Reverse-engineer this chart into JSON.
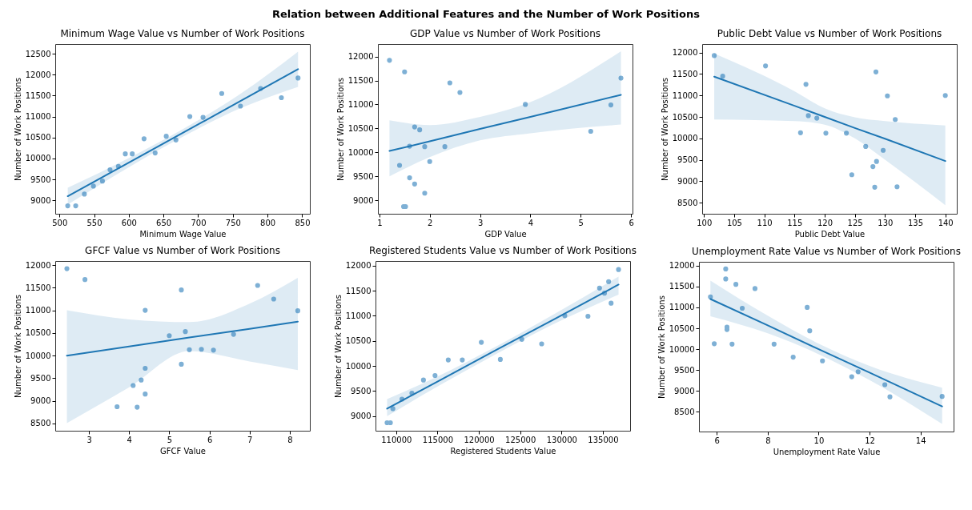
{
  "chart_data": [
    {
      "type": "other",
      "title": "Relation between Additional Features and the Number of Work Positions"
    },
    {
      "type": "scatter",
      "title": "Minimum Wage Value vs Number of Work Positions",
      "xlabel": "Minimum Wage Value",
      "ylabel": "Number of Work Positions",
      "xlim": [
        494,
        861
      ],
      "ylim": [
        8680,
        12730
      ],
      "xticks": [
        500,
        550,
        600,
        650,
        700,
        750,
        800,
        850
      ],
      "yticks": [
        9000,
        9500,
        10000,
        10500,
        11000,
        11500,
        12000,
        12500
      ],
      "series": [
        {
          "type": "scatter",
          "marker": "circle",
          "color": "#7eb0d5",
          "x": [
            512,
            523.5,
            536,
            549,
            562,
            573,
            585,
            595,
            605,
            622,
            638,
            654,
            668,
            688,
            707,
            734,
            761,
            790,
            820,
            844
          ],
          "values": [
            8870,
            8870,
            9150,
            9340,
            9460,
            9730,
            9810,
            10110,
            10110,
            10470,
            10130,
            10530,
            10440,
            11000,
            10980,
            11550,
            11250,
            11670,
            11450,
            11920
          ]
        },
        {
          "type": "line",
          "color": "#1f77b4",
          "x": [
            512,
            600,
            680,
            760,
            844
          ],
          "values": [
            9100,
            9900,
            10630,
            11360,
            12130
          ],
          "lower": [
            8900,
            9790,
            10540,
            11190,
            11710
          ],
          "upper": [
            9300,
            10010,
            10720,
            11530,
            12550
          ]
        }
      ]
    },
    {
      "type": "scatter",
      "title": "GDP Value vs Number of Work Positions",
      "xlabel": "GDP Value",
      "ylabel": "Number of Work Positions",
      "xlim": [
        0.97,
        6.03
      ],
      "ylim": [
        8720,
        12260
      ],
      "xticks": [
        1,
        2,
        3,
        4,
        5,
        6
      ],
      "yticks": [
        9000,
        9500,
        10000,
        10500,
        11000,
        11500,
        12000
      ],
      "series": [
        {
          "type": "scatter",
          "marker": "circle",
          "color": "#7eb0d5",
          "x": [
            1.2,
            1.5,
            2.4,
            2.6,
            3.9,
            5.8,
            5.6,
            5.2,
            1.7,
            1.8,
            1.6,
            1.9,
            2.3,
            2.0,
            1.4,
            1.6,
            1.7,
            1.9,
            1.48,
            1.52
          ],
          "values": [
            11920,
            11680,
            11450,
            11250,
            11000,
            11550,
            10990,
            10440,
            10530,
            10470,
            10130,
            10120,
            10120,
            9810,
            9730,
            9470,
            9340,
            9150,
            8870,
            8870
          ]
        },
        {
          "type": "line",
          "color": "#1f77b4",
          "x": [
            1.2,
            2,
            3,
            4,
            5.8
          ],
          "values": [
            10030,
            10230,
            10490,
            10740,
            11200
          ],
          "lower": [
            9500,
            9900,
            10250,
            10400,
            10580
          ],
          "upper": [
            10670,
            10570,
            10740,
            11050,
            12110
          ]
        }
      ]
    },
    {
      "type": "scatter",
      "title": "Public Debt Value vs Number of Work Positions",
      "xlabel": "Public Debt Value",
      "ylabel": "Number of Work Positions",
      "xlim": [
        99.7,
        141.9
      ],
      "ylim": [
        8240,
        12200
      ],
      "xticks": [
        100,
        105,
        110,
        115,
        120,
        125,
        130,
        135,
        140
      ],
      "yticks": [
        8500,
        9000,
        9500,
        10000,
        10500,
        11000,
        11500,
        12000
      ],
      "series": [
        {
          "type": "scatter",
          "marker": "circle",
          "color": "#7eb0d5",
          "x": [
            101.7,
            103.1,
            110.2,
            116.9,
            128.5,
            130.4,
            140,
            117.3,
            118.7,
            131.7,
            116,
            120.2,
            123.6,
            126.8,
            129.7,
            128.6,
            128,
            124.5,
            128.3,
            132
          ],
          "values": [
            11930,
            11450,
            11690,
            11260,
            11550,
            10990,
            11000,
            10530,
            10470,
            10440,
            10130,
            10120,
            10120,
            9810,
            9720,
            9460,
            9340,
            9150,
            8860,
            8870
          ]
        },
        {
          "type": "line",
          "color": "#1f77b4",
          "x": [
            101.7,
            115,
            120,
            125,
            130,
            140
          ],
          "values": [
            11440,
            10760,
            10500,
            10240,
            9990,
            9470
          ],
          "lower": [
            10440,
            10400,
            10320,
            10000,
            9500,
            8440
          ],
          "upper": [
            11980,
            11100,
            10700,
            10490,
            10400,
            10300
          ]
        }
      ]
    },
    {
      "type": "scatter",
      "title": "GFCF Value vs Number of Work Positions",
      "xlabel": "GFCF Value",
      "ylabel": "Number of Work Positions",
      "xlim": [
        2.16,
        8.5
      ],
      "ylim": [
        8340,
        12090
      ],
      "xticks": [
        3,
        4,
        5,
        6,
        7,
        8
      ],
      "yticks": [
        8500,
        9000,
        9500,
        10000,
        10500,
        11000,
        11500,
        12000
      ],
      "series": [
        {
          "type": "scatter",
          "marker": "circle",
          "color": "#7eb0d5",
          "x": [
            2.45,
            2.9,
            5.3,
            7.2,
            7.6,
            8.2,
            4.4,
            5.0,
            5.4,
            6.6,
            5.5,
            5.8,
            6.1,
            5.3,
            4.4,
            4.3,
            4.1,
            4.4,
            3.7,
            4.2
          ],
          "values": [
            11920,
            11680,
            11450,
            11550,
            11250,
            10990,
            11000,
            10440,
            10530,
            10470,
            10130,
            10140,
            10120,
            9810,
            9720,
            9460,
            9340,
            9150,
            8870,
            8860
          ]
        },
        {
          "type": "line",
          "color": "#1f77b4",
          "x": [
            2.45,
            4,
            5.5,
            7,
            8.2
          ],
          "values": [
            10000,
            10200,
            10400,
            10590,
            10750
          ],
          "lower": [
            8510,
            9300,
            10100,
            9870,
            9680
          ],
          "upper": [
            11000,
            10800,
            10740,
            11150,
            11720
          ]
        }
      ]
    },
    {
      "type": "scatter",
      "title": "Registered Students Value vs Number of Work Positions",
      "xlabel": "Registered Students Value",
      "ylabel": "Number of Work Positions",
      "xlim": [
        107500,
        138300
      ],
      "ylim": [
        8710,
        12090
      ],
      "xticks": [
        110000,
        115000,
        120000,
        125000,
        130000,
        135000
      ],
      "yticks": [
        9000,
        9500,
        10000,
        10500,
        11000,
        11500,
        12000
      ],
      "series": [
        {
          "type": "scatter",
          "marker": "circle",
          "color": "#7eb0d5",
          "x": [
            108900,
            109300,
            109600,
            110700,
            111900,
            113300,
            114700,
            116300,
            118000,
            120300,
            122600,
            125200,
            127600,
            130400,
            133200,
            134600,
            135200,
            135700,
            136000,
            136900
          ],
          "values": [
            8870,
            8870,
            9150,
            9340,
            9460,
            9720,
            9810,
            10120,
            10120,
            10470,
            10130,
            10530,
            10440,
            11000,
            10990,
            11550,
            11450,
            11680,
            11250,
            11920
          ]
        },
        {
          "type": "line",
          "color": "#1f77b4",
          "x": [
            108900,
            115000,
            122000,
            129000,
            136900
          ],
          "values": [
            9150,
            9690,
            10310,
            10920,
            11620
          ],
          "lower": [
            9000,
            9590,
            10230,
            10830,
            11420
          ],
          "upper": [
            9340,
            9790,
            10380,
            11020,
            11780
          ]
        }
      ]
    },
    {
      "type": "scatter",
      "title": "Unemployment Rate Value vs Number of Work Positions",
      "xlabel": "Unemployment Rate Value",
      "ylabel": "Number of Work Positions",
      "xlim": [
        5.3,
        15.3
      ],
      "ylim": [
        8030,
        12090
      ],
      "xticks": [
        6,
        8,
        10,
        12,
        14
      ],
      "yticks": [
        8500,
        9000,
        9500,
        10000,
        10500,
        11000,
        11500,
        12000
      ],
      "series": [
        {
          "type": "scatter",
          "marker": "circle",
          "color": "#7eb0d5",
          "x": [
            6.35,
            6.35,
            6.75,
            7.5,
            5.75,
            7.0,
            9.55,
            9.65,
            6.4,
            6.4,
            5.9,
            6.6,
            8.25,
            9.0,
            10.15,
            11.55,
            11.3,
            12.6,
            12.8,
            14.85
          ],
          "values": [
            11920,
            11680,
            11550,
            11450,
            11250,
            10980,
            11000,
            10440,
            10530,
            10470,
            10130,
            10120,
            10120,
            9810,
            9720,
            9460,
            9340,
            9150,
            8860,
            8870
          ]
        },
        {
          "type": "line",
          "color": "#1f77b4",
          "x": [
            5.75,
            8,
            10,
            12,
            14.85
          ],
          "values": [
            11200,
            10570,
            10000,
            9440,
            8630
          ],
          "lower": [
            10790,
            10380,
            9880,
            9260,
            8210
          ],
          "upper": [
            11640,
            10800,
            10130,
            9600,
            9080
          ]
        }
      ]
    }
  ]
}
